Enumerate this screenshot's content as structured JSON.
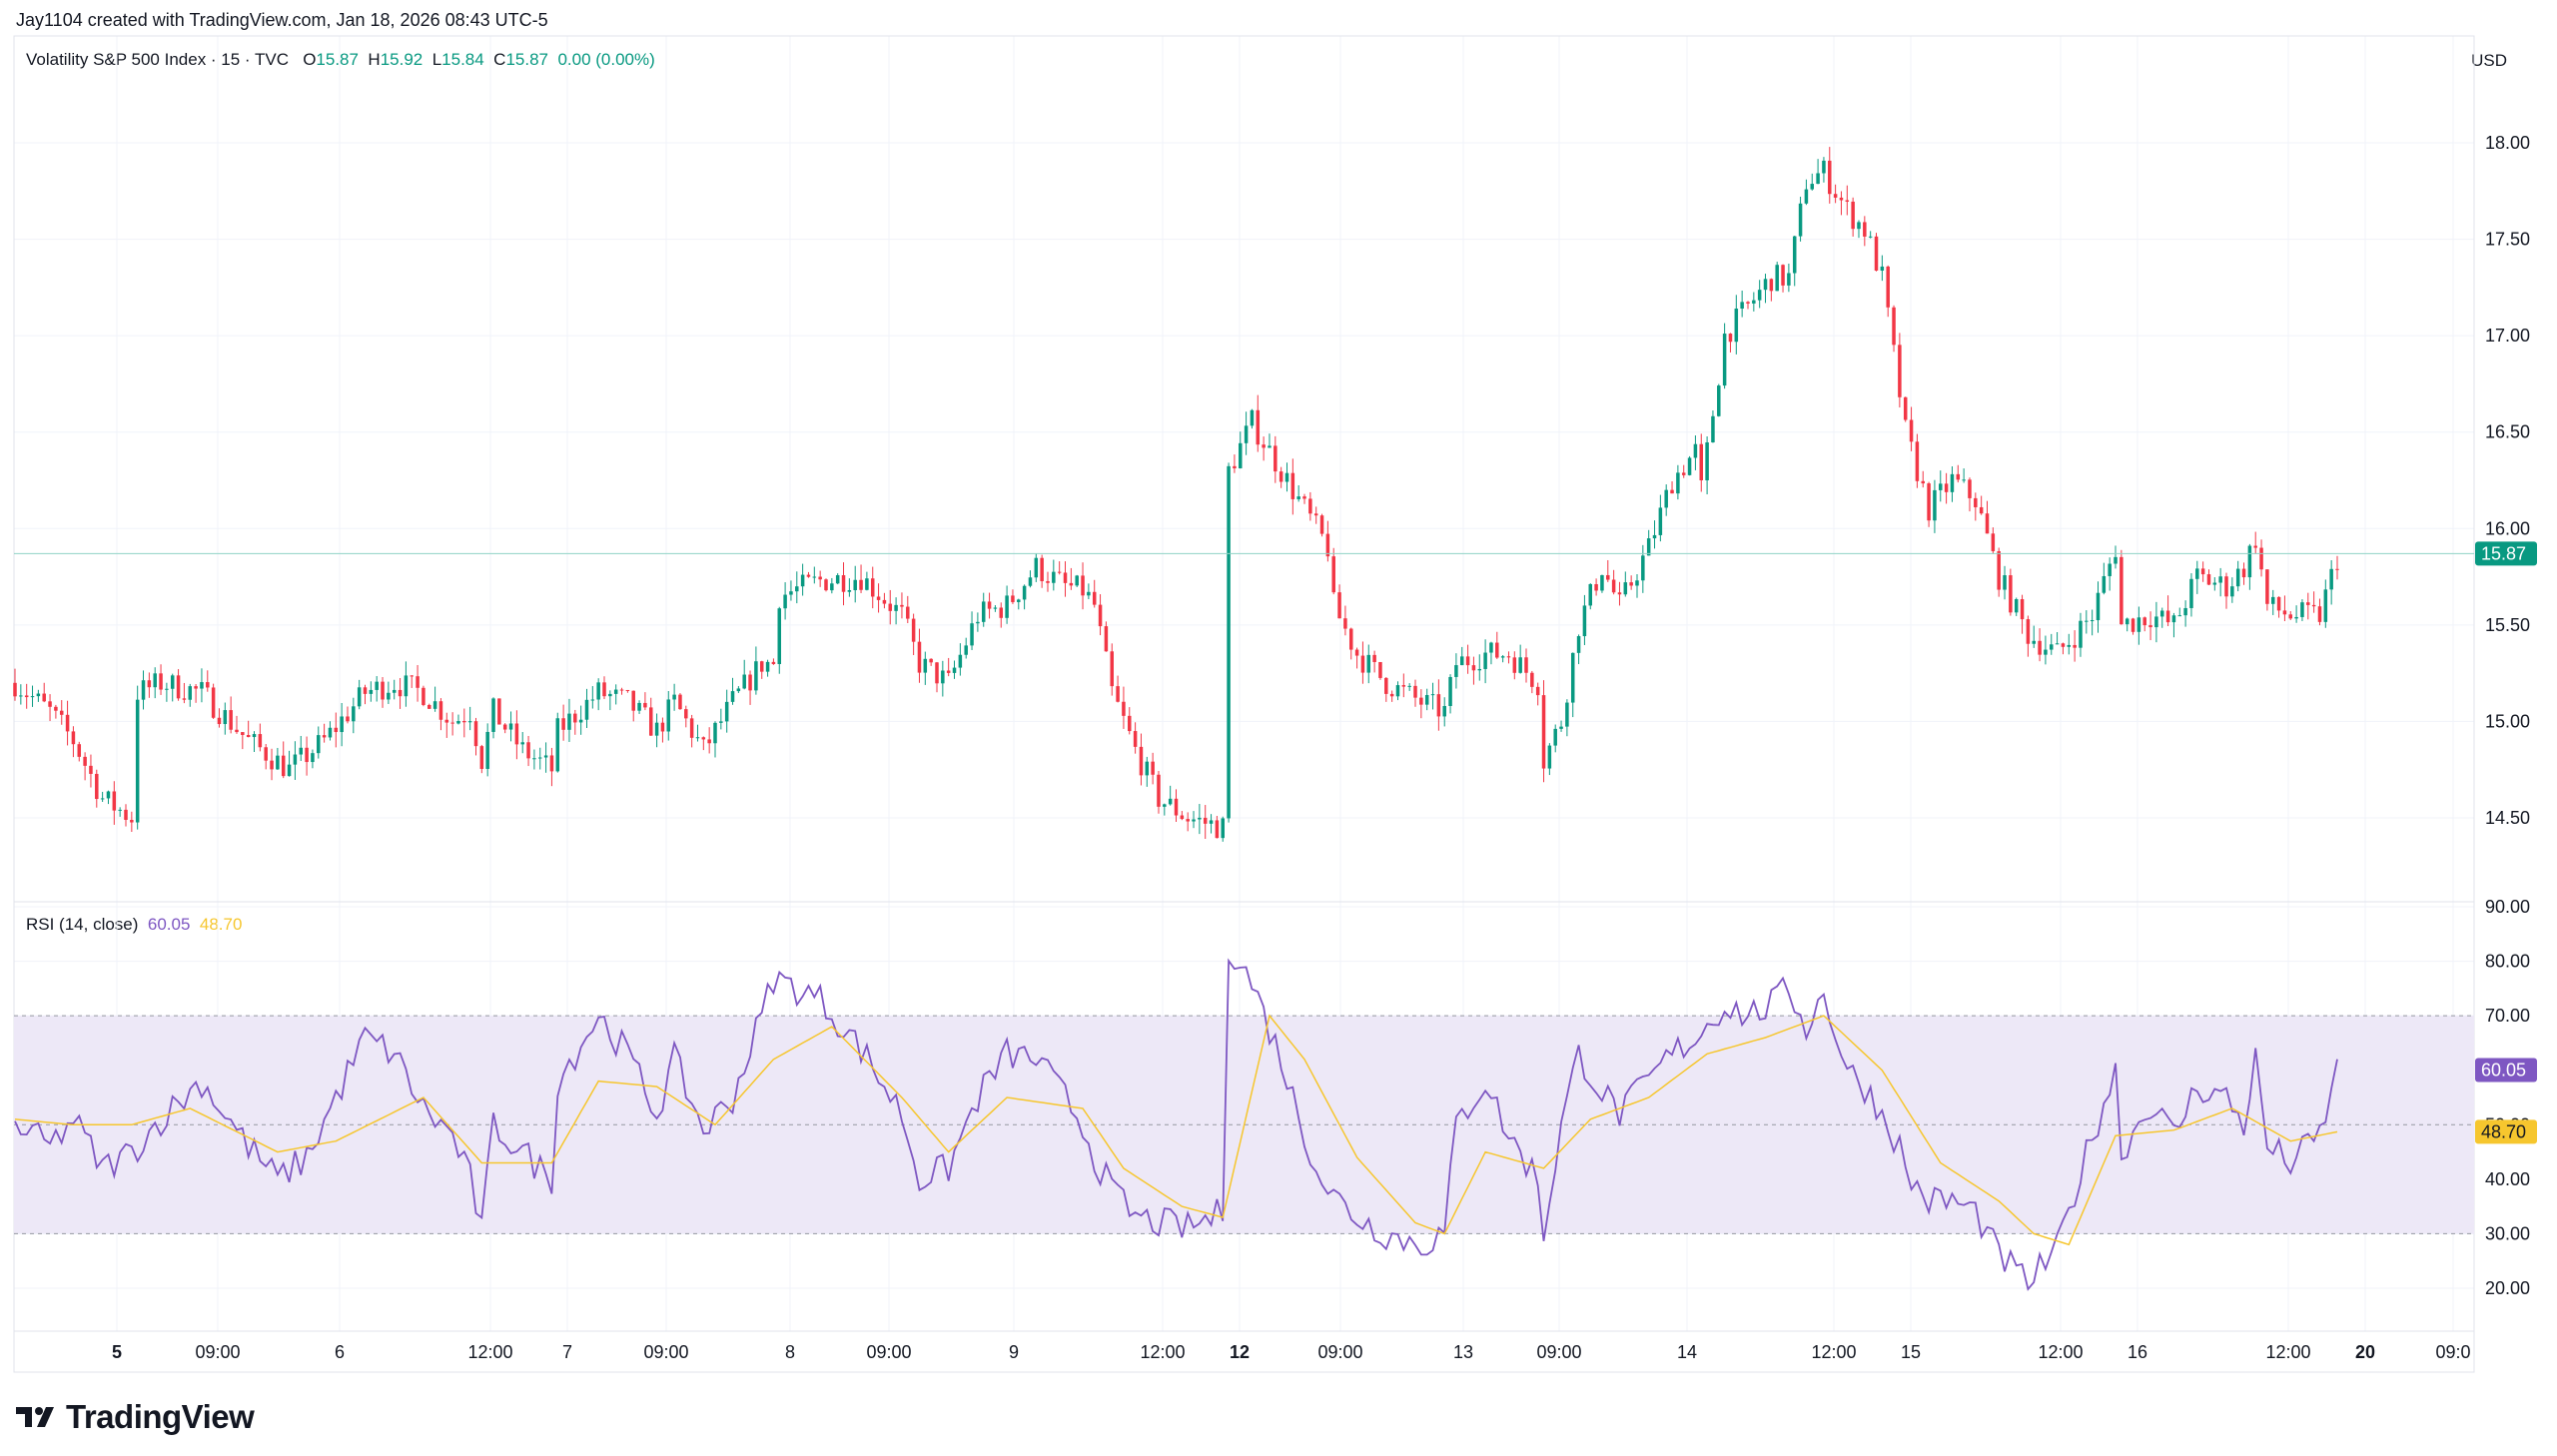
{
  "header": {
    "attribution": "Jay1104 created with TradingView.com, Jan 18, 2026 08:43 UTC-5"
  },
  "main_legend": {
    "symbol": "Volatility S&P 500 Index · 15 · TVC",
    "o_label": "O",
    "o_value": "15.87",
    "h_label": "H",
    "h_value": "15.92",
    "l_label": "L",
    "l_value": "15.84",
    "c_label": "C",
    "c_value": "15.87",
    "change": "0.00 (0.00%)"
  },
  "currency": "USD",
  "rsi_legend": {
    "label": "RSI (14, close)",
    "rsi_value": "60.05",
    "ma_value": "48.70"
  },
  "colors": {
    "up": "#089981",
    "down": "#f23645",
    "rsi": "#7e57c2",
    "rsi_ma": "#f6c62e",
    "band": "#ede8f7",
    "grid": "#f0f3fa",
    "axis_text": "#131722"
  },
  "logo": {
    "text": "TradingView",
    "icon": "tradingview-logo-icon"
  },
  "chart_data": [
    {
      "type": "candlestick",
      "title": "Volatility S&P 500 Index · 15 · TVC",
      "ylim": [
        14.3,
        18.3
      ],
      "y_ticks": [
        "18.00",
        "17.50",
        "17.00",
        "16.50",
        "16.00",
        "15.50",
        "15.00",
        "14.50"
      ],
      "last_price": "15.87",
      "x_ticks": [
        "5",
        "09:00",
        "6",
        "12:00",
        "7",
        "09:00",
        "8",
        "09:00",
        "9",
        "12:00",
        "12",
        "09:00",
        "13",
        "09:00",
        "14",
        "12:00",
        "15",
        "12:00",
        "16",
        "12:00",
        "20",
        "09:0"
      ],
      "bold_x_ticks": [
        "5",
        "12",
        "20"
      ],
      "close_path": [
        [
          0,
          15.2
        ],
        [
          6,
          15.05
        ],
        [
          10,
          14.9
        ],
        [
          15,
          14.6
        ],
        [
          20,
          14.5
        ],
        [
          21,
          15.15
        ],
        [
          25,
          15.2
        ],
        [
          32,
          15.15
        ],
        [
          40,
          14.9
        ],
        [
          47,
          14.75
        ],
        [
          53,
          14.9
        ],
        [
          60,
          15.15
        ],
        [
          65,
          15.2
        ],
        [
          70,
          15.15
        ],
        [
          75,
          15.0
        ],
        [
          78,
          15.05
        ],
        [
          80,
          14.8
        ],
        [
          82,
          15.05
        ],
        [
          87,
          14.85
        ],
        [
          92,
          14.75
        ],
        [
          93,
          14.95
        ],
        [
          100,
          15.15
        ],
        [
          105,
          15.1
        ],
        [
          110,
          14.95
        ],
        [
          113,
          15.1
        ],
        [
          118,
          14.85
        ],
        [
          123,
          15.1
        ],
        [
          128,
          15.3
        ],
        [
          130,
          15.3
        ],
        [
          131,
          15.65
        ],
        [
          138,
          15.73
        ],
        [
          145,
          15.75
        ],
        [
          152,
          15.55
        ],
        [
          155,
          15.3
        ],
        [
          160,
          15.2
        ],
        [
          165,
          15.55
        ],
        [
          170,
          15.6
        ],
        [
          175,
          15.8
        ],
        [
          180,
          15.7
        ],
        [
          183,
          15.68
        ],
        [
          185,
          15.6
        ],
        [
          188,
          15.15
        ],
        [
          192,
          14.85
        ],
        [
          196,
          14.6
        ],
        [
          201,
          14.5
        ],
        [
          207,
          14.45
        ],
        [
          208,
          16.3
        ],
        [
          212,
          16.55
        ],
        [
          217,
          16.3
        ],
        [
          221,
          16.1
        ],
        [
          225,
          15.9
        ],
        [
          226,
          15.6
        ],
        [
          230,
          15.35
        ],
        [
          235,
          15.2
        ],
        [
          241,
          15.1
        ],
        [
          245,
          15.05
        ],
        [
          247,
          15.3
        ],
        [
          252,
          15.35
        ],
        [
          256,
          15.35
        ],
        [
          261,
          15.2
        ],
        [
          262,
          14.8
        ],
        [
          265,
          15.0
        ],
        [
          268,
          15.5
        ],
        [
          272,
          15.8
        ],
        [
          275,
          15.6
        ],
        [
          280,
          15.9
        ],
        [
          284,
          16.25
        ],
        [
          288,
          16.4
        ],
        [
          289,
          16.2
        ],
        [
          293,
          17.0
        ],
        [
          297,
          17.15
        ],
        [
          301,
          17.3
        ],
        [
          304,
          17.3
        ],
        [
          307,
          17.8
        ],
        [
          310,
          17.85
        ],
        [
          314,
          17.65
        ],
        [
          317,
          17.55
        ],
        [
          320,
          17.3
        ],
        [
          323,
          16.7
        ],
        [
          324,
          16.5
        ],
        [
          328,
          16.1
        ],
        [
          332,
          16.25
        ],
        [
          336,
          16.15
        ],
        [
          340,
          15.75
        ],
        [
          345,
          15.45
        ],
        [
          350,
          15.35
        ],
        [
          356,
          15.55
        ],
        [
          360,
          15.9
        ],
        [
          361,
          15.5
        ],
        [
          366,
          15.55
        ],
        [
          370,
          15.5
        ],
        [
          374,
          15.75
        ],
        [
          379,
          15.7
        ],
        [
          382,
          15.8
        ],
        [
          384,
          15.95
        ],
        [
          386,
          15.6
        ],
        [
          390,
          15.55
        ],
        [
          395,
          15.55
        ],
        [
          398,
          15.85
        ]
      ]
    },
    {
      "type": "line",
      "title": "RSI (14, close)",
      "ylim": [
        15,
        95
      ],
      "y_ticks": [
        "90.00",
        "80.00",
        "70.00",
        "60.00",
        "50.00",
        "40.00",
        "30.00",
        "20.00"
      ],
      "bands": [
        30,
        50,
        70
      ],
      "series": [
        {
          "name": "RSI",
          "points": [
            [
              0,
              50
            ],
            [
              6,
              46
            ],
            [
              10,
              51
            ],
            [
              15,
              42
            ],
            [
              20,
              45
            ],
            [
              25,
              51
            ],
            [
              32,
              58
            ],
            [
              40,
              46
            ],
            [
              45,
              40
            ],
            [
              50,
              44
            ],
            [
              55,
              55
            ],
            [
              60,
              66
            ],
            [
              65,
              63
            ],
            [
              70,
              53
            ],
            [
              75,
              48
            ],
            [
              78,
              40
            ],
            [
              80,
              31
            ],
            [
              82,
              50
            ],
            [
              87,
              45
            ],
            [
              92,
              40
            ],
            [
              93,
              58
            ],
            [
              100,
              70
            ],
            [
              105,
              63
            ],
            [
              110,
              52
            ],
            [
              113,
              62
            ],
            [
              118,
              49
            ],
            [
              123,
              55
            ],
            [
              128,
              70
            ],
            [
              130,
              77
            ],
            [
              138,
              73
            ],
            [
              145,
              64
            ],
            [
              152,
              52
            ],
            [
              155,
              40
            ],
            [
              160,
              42
            ],
            [
              165,
              55
            ],
            [
              170,
              63
            ],
            [
              175,
              62
            ],
            [
              180,
              55
            ],
            [
              183,
              50
            ],
            [
              185,
              44
            ],
            [
              188,
              38
            ],
            [
              192,
              33
            ],
            [
              196,
              32
            ],
            [
              201,
              31
            ],
            [
              207,
              34
            ],
            [
              208,
              83
            ],
            [
              212,
              76
            ],
            [
              217,
              62
            ],
            [
              221,
              48
            ],
            [
              225,
              38
            ],
            [
              230,
              33
            ],
            [
              235,
              30
            ],
            [
              241,
              28
            ],
            [
              245,
              30
            ],
            [
              247,
              50
            ],
            [
              252,
              58
            ],
            [
              256,
              48
            ],
            [
              261,
              40
            ],
            [
              262,
              30
            ],
            [
              265,
              50
            ],
            [
              268,
              63
            ],
            [
              272,
              56
            ],
            [
              275,
              52
            ],
            [
              280,
              58
            ],
            [
              284,
              63
            ],
            [
              288,
              66
            ],
            [
              293,
              72
            ],
            [
              297,
              70
            ],
            [
              301,
              72
            ],
            [
              304,
              75
            ],
            [
              307,
              68
            ],
            [
              310,
              74
            ],
            [
              314,
              60
            ],
            [
              317,
              57
            ],
            [
              320,
              52
            ],
            [
              323,
              46
            ],
            [
              324,
              41
            ],
            [
              328,
              36
            ],
            [
              332,
              36
            ],
            [
              336,
              34
            ],
            [
              340,
              26
            ],
            [
              345,
              21
            ],
            [
              350,
              27
            ],
            [
              356,
              48
            ],
            [
              360,
              60
            ],
            [
              361,
              45
            ],
            [
              366,
              54
            ],
            [
              370,
              48
            ],
            [
              374,
              57
            ],
            [
              379,
              55
            ],
            [
              382,
              50
            ],
            [
              384,
              62
            ],
            [
              386,
              46
            ],
            [
              390,
              43
            ],
            [
              395,
              48
            ],
            [
              398,
              60.05
            ]
          ]
        },
        {
          "name": "RSI-based MA",
          "points": [
            [
              0,
              51
            ],
            [
              10,
              50
            ],
            [
              20,
              50
            ],
            [
              30,
              53
            ],
            [
              45,
              45
            ],
            [
              55,
              47
            ],
            [
              70,
              55
            ],
            [
              80,
              43
            ],
            [
              92,
              43
            ],
            [
              100,
              58
            ],
            [
              110,
              57
            ],
            [
              120,
              50
            ],
            [
              130,
              62
            ],
            [
              140,
              68
            ],
            [
              152,
              55
            ],
            [
              160,
              45
            ],
            [
              170,
              55
            ],
            [
              183,
              53
            ],
            [
              190,
              42
            ],
            [
              200,
              35
            ],
            [
              207,
              33
            ],
            [
              215,
              70
            ],
            [
              221,
              62
            ],
            [
              230,
              44
            ],
            [
              240,
              32
            ],
            [
              245,
              30
            ],
            [
              252,
              45
            ],
            [
              262,
              42
            ],
            [
              270,
              51
            ],
            [
              280,
              55
            ],
            [
              290,
              63
            ],
            [
              300,
              66
            ],
            [
              310,
              70
            ],
            [
              320,
              60
            ],
            [
              330,
              43
            ],
            [
              340,
              36
            ],
            [
              346,
              30
            ],
            [
              352,
              28
            ],
            [
              360,
              48
            ],
            [
              370,
              49
            ],
            [
              380,
              53
            ],
            [
              390,
              47
            ],
            [
              398,
              48.7
            ]
          ]
        }
      ]
    }
  ]
}
